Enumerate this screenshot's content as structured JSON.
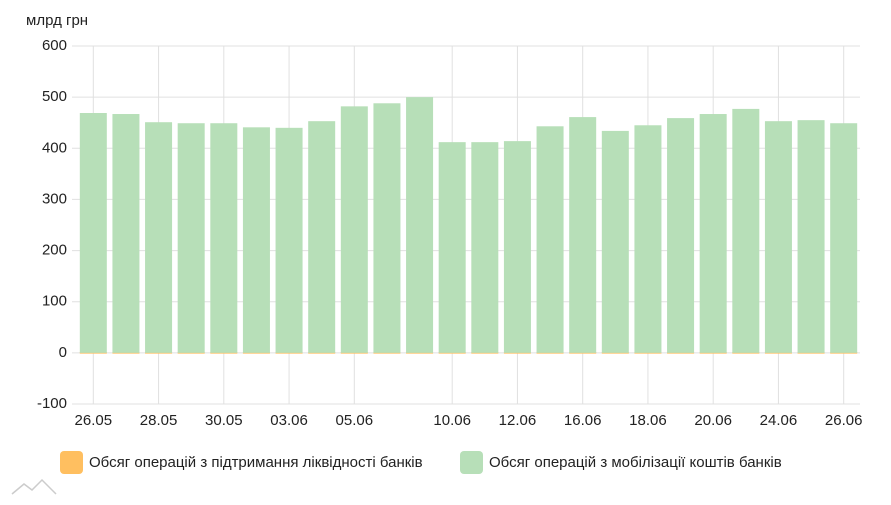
{
  "chart_data": {
    "type": "bar",
    "y_axis_label": "млрд грн",
    "categories": [
      "26.05",
      null,
      "28.05",
      null,
      "30.05",
      null,
      "03.06",
      null,
      "05.06",
      null,
      null,
      "10.06",
      null,
      "12.06",
      null,
      "16.06",
      null,
      "18.06",
      null,
      "20.06",
      null,
      "24.06",
      null,
      "26.06"
    ],
    "series": [
      {
        "name": "Обсяг операцій з підтримання ліквідності банків",
        "color": "#ffbf60",
        "values": [
          0,
          0,
          0,
          0,
          0,
          0,
          0,
          0,
          0,
          0,
          0,
          0,
          0,
          0,
          0,
          0,
          0,
          0,
          0,
          0,
          0,
          0,
          0,
          0
        ]
      },
      {
        "name": "Обсяг операцій з мобілізації коштів банків",
        "color": "#b7dfb8",
        "values": [
          469,
          467,
          451,
          449,
          449,
          441,
          440,
          453,
          482,
          488,
          500,
          412,
          412,
          414,
          443,
          461,
          434,
          445,
          459,
          467,
          477,
          453,
          455,
          449
        ]
      }
    ],
    "ylim": [
      -100,
      600
    ],
    "yticks": [
      -100,
      0,
      100,
      200,
      300,
      400,
      500,
      600
    ],
    "grid": true
  }
}
